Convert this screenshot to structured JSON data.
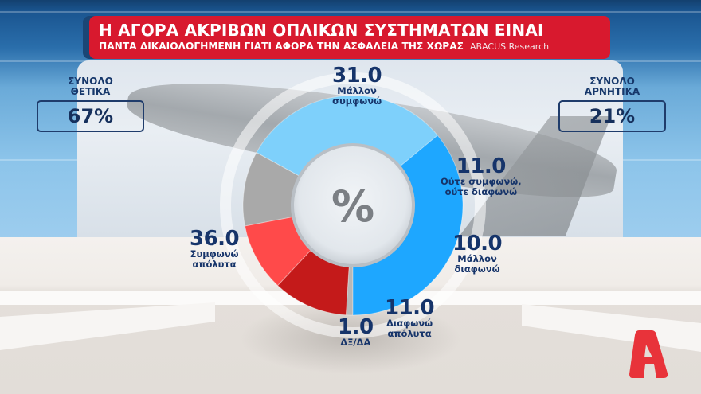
{
  "header": {
    "title_line1": "Η ΑΓΟΡΑ ΑΚΡΙΒΩΝ ΟΠΛΙΚΩΝ ΣΥΣΤΗΜΑΤΩΝ ΕΙΝΑΙ",
    "title_line2": "ΠΑΝΤΑ ΔΙΚΑΙΟΛΟΓΗΜΕΝΗ ΓΙΑΤΙ ΑΦΟΡΑ ΤΗΝ ΑΣΦΑΛΕΙΑ ΤΗΣ ΧΩΡΑΣ",
    "source": "ABACUS Research"
  },
  "kpis": {
    "positive": {
      "label_line1": "ΣΥΝΟΛΟ",
      "label_line2": "ΘΕΤΙΚΑ",
      "value": "67%"
    },
    "negative": {
      "label_line1": "ΣΥΝΟΛΟ",
      "label_line2": "ΑΡΝΗΤΙΚΑ",
      "value": "21%"
    }
  },
  "center_symbol": "%",
  "logo": "alpha-tv-logo",
  "colors": {
    "title_red": "#d8192e",
    "navy_text": "#16346a",
    "blue_strong": "#1ea7ff",
    "blue_light": "#7ed0fb",
    "gray": "#a9a9a9",
    "red_light": "#ff4a4a",
    "red_dark": "#c41a1a",
    "logo_red": "#e8333a"
  },
  "chart_data": {
    "type": "pie",
    "variant": "donut",
    "title": "Η ΑΓΟΡΑ ΑΚΡΙΒΩΝ ΟΠΛΙΚΩΝ ΣΥΣΤΗΜΑΤΩΝ ΕΙΝΑΙ ΠΑΝΤΑ ΔΙΚΑΙΟΛΟΓΗΜΕΝΗ ΓΙΑΤΙ ΑΦΟΡΑ ΤΗΝ ΑΣΦΑΛΕΙΑ ΤΗΣ ΧΩΡΑΣ",
    "unit": "%",
    "categories": [
      "Συμφωνώ απόλυτα",
      "Μάλλον συμφωνώ",
      "Ούτε συμφωνώ, ούτε διαφωνώ",
      "Μάλλον διαφωνώ",
      "Διαφωνώ απόλυτα",
      "ΔΞ/ΔΑ"
    ],
    "values": [
      36.0,
      31.0,
      11.0,
      10.0,
      11.0,
      1.0
    ],
    "value_labels": [
      "36.0",
      "31.0",
      "11.0",
      "10.0",
      "11.0",
      "1.0"
    ],
    "colors": [
      "#1ea7ff",
      "#7ed0fb",
      "#a9a9a9",
      "#ff4a4a",
      "#c41a1a",
      "#b8b8b8"
    ],
    "summary": {
      "total_positive": "67%",
      "total_negative": "21%"
    },
    "legend": "inline labels around donut",
    "source": "ABACUS Research"
  },
  "segments": [
    {
      "value": "36.0",
      "line1": "Συμφωνώ",
      "line2": "απόλυτα"
    },
    {
      "value": "31.0",
      "line1": "Μάλλον",
      "line2": "συμφωνώ"
    },
    {
      "value": "11.0",
      "line1": "Ούτε συμφωνώ,",
      "line2": "ούτε διαφωνώ"
    },
    {
      "value": "10.0",
      "line1": "Μάλλον",
      "line2": "διαφωνώ"
    },
    {
      "value": "11.0",
      "line1": "Διαφωνώ",
      "line2": "απόλυτα"
    },
    {
      "value": "1.0",
      "line1": "ΔΞ/ΔΑ",
      "line2": ""
    }
  ]
}
